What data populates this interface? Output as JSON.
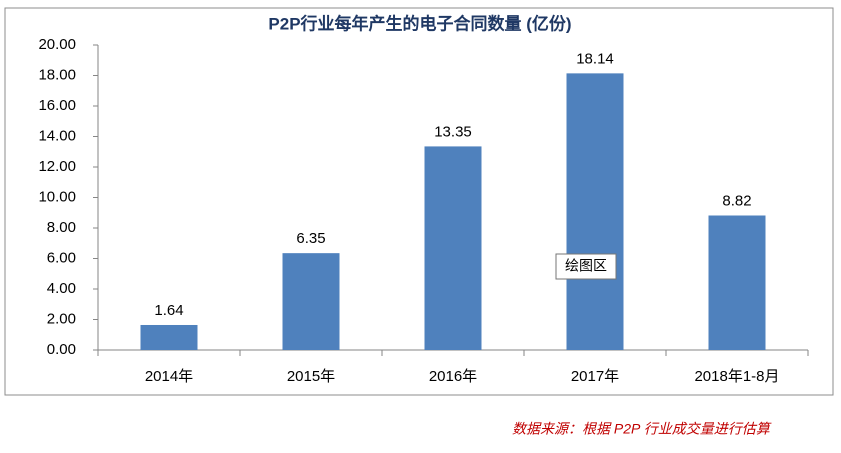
{
  "chart_data": {
    "type": "bar",
    "title": "P2P行业每年产生的电子合同数量 (亿份)",
    "categories": [
      "2014年",
      "2015年",
      "2016年",
      "2017年",
      "2018年1-8月"
    ],
    "values": [
      1.64,
      6.35,
      13.35,
      18.14,
      8.82
    ],
    "color": "#4f81bd",
    "ylim": [
      0,
      20
    ],
    "yticks": [
      {
        "value": 0,
        "label": "0.00"
      },
      {
        "value": 2,
        "label": "2.00"
      },
      {
        "value": 4,
        "label": "4.00"
      },
      {
        "value": 6,
        "label": "6.00"
      },
      {
        "value": 8,
        "label": "8.00"
      },
      {
        "value": 10,
        "label": "10.00"
      },
      {
        "value": 12,
        "label": "12.00"
      },
      {
        "value": 14,
        "label": "14.00"
      },
      {
        "value": 16,
        "label": "16.00"
      },
      {
        "value": 18,
        "label": "18.00"
      },
      {
        "value": 20,
        "label": "20.00"
      }
    ],
    "grid": false,
    "tooltip": "绘图区",
    "source_note": "数据来源：根据 P2P 行业成交量进行估算"
  }
}
